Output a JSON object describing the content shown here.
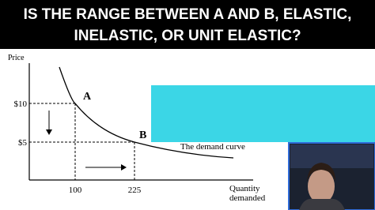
{
  "title": [
    "IS THE RANGE BETWEEN A AND B, ELASTIC,",
    "INELASTIC, OR UNIT ELASTIC?"
  ],
  "graph": {
    "y_label": "Price",
    "y_ticks": [
      "$10",
      "$5"
    ],
    "x_ticks": [
      "100",
      "225"
    ],
    "points": [
      "A",
      "B"
    ],
    "curve_label": "The demand curve",
    "x_label": [
      "Quantity",
      "demanded"
    ]
  }
}
